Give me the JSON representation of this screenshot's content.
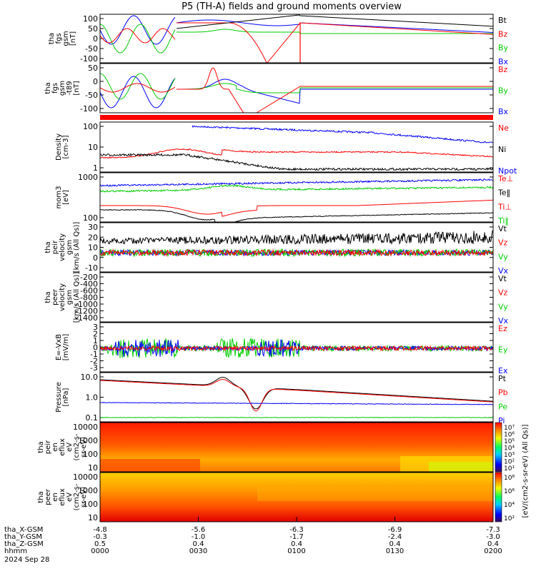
{
  "chart_data": {
    "type": "line",
    "title": "P5 (TH-A) fields and ground moments overview",
    "date_label": "2024 Sep 28",
    "x_axis": {
      "rows": [
        {
          "label": "tha_X-GSM",
          "values": [
            "-4.8",
            "-5.6",
            "-6.3",
            "-6.9",
            "-7.3"
          ]
        },
        {
          "label": "tha_Y-GSM",
          "values": [
            "-0.3",
            "-1.0",
            "-1.7",
            "-2.4",
            "-3.0"
          ]
        },
        {
          "label": "tha_Z-GSM",
          "values": [
            "0.5",
            "0.4",
            "0.4",
            "0.4",
            "0.4"
          ]
        },
        {
          "label": "hhmm",
          "values": [
            "0000",
            "0030",
            "0100",
            "0130",
            "0200"
          ]
        }
      ],
      "time_hours": [
        0,
        0.5,
        1.0,
        1.5,
        2.0
      ]
    },
    "panels": [
      {
        "id": "fgs-gsm",
        "ylabel_lines": [
          "tha",
          "fgs",
          "gsm",
          "[nT]"
        ],
        "yrange": [
          -100,
          100
        ],
        "ticks": [
          "100",
          "50",
          "0",
          "-50",
          "-100"
        ],
        "legend": [
          {
            "label": "Bt",
            "color": "#000000"
          },
          {
            "label": "Bz",
            "color": "#ff0000"
          },
          {
            "label": "By",
            "color": "#00cc00"
          },
          {
            "label": "Bx",
            "color": "#0000ff"
          }
        ]
      },
      {
        "id": "fgs-gsm-t89",
        "ylabel_lines": [
          "tha",
          "fgs",
          "gsm",
          "-t89",
          "[nT]"
        ],
        "yrange": [
          -120,
          50
        ],
        "ticks": [
          "50",
          "0",
          "-50",
          "-100"
        ],
        "legend": [
          {
            "label": "Bz",
            "color": "#ff0000"
          },
          {
            "label": "By",
            "color": "#00cc00"
          },
          {
            "label": "Bx",
            "color": "#0000ff"
          }
        ]
      },
      {
        "id": "density",
        "ylabel_lines": [
          "Density",
          "[cm-3]"
        ],
        "log": true,
        "ticks": [
          "100",
          "10",
          "1"
        ],
        "legend": [
          {
            "label": "Ne",
            "color": "#ff0000"
          },
          {
            "label": "Ni",
            "color": "#000000"
          },
          {
            "label": "Npot",
            "color": "#0000ff"
          }
        ]
      },
      {
        "id": "temperature",
        "ylabel_lines": [
          "mom3",
          "[eV]"
        ],
        "log": true,
        "ticks": [
          "1000",
          "100"
        ],
        "legend": [
          {
            "label": "Te⊥",
            "color": "#ff0000"
          },
          {
            "label": "Te‖",
            "color": "#000000"
          },
          {
            "label": "Ti⊥",
            "color": "#ff0000"
          },
          {
            "label": "Ti‖",
            "color": "#00cc00"
          }
        ]
      },
      {
        "id": "peir-velocity",
        "ylabel_lines": [
          "tha",
          "peir",
          "velocity",
          "gsm",
          "[km/s (All Qs)]"
        ],
        "yrange": [
          -20,
          30
        ],
        "ticks": [
          "30",
          "20",
          "10",
          "0",
          "-10"
        ],
        "legend": [
          {
            "label": "Vt",
            "color": "#000000"
          },
          {
            "label": "Vz",
            "color": "#ff0000"
          },
          {
            "label": "Vy",
            "color": "#00cc00"
          },
          {
            "label": "Vx",
            "color": "#0000ff"
          }
        ]
      },
      {
        "id": "peer-velocity",
        "ylabel_lines": [
          "tha",
          "peer",
          "velocity",
          "gsm",
          "[km/s (All Qs)]"
        ],
        "yrange": [
          -1400,
          0
        ],
        "ticks": [
          "-200",
          "-400",
          "-600",
          "-800",
          "-1000",
          "-1200",
          "-1400"
        ],
        "legend": [
          {
            "label": "Vt",
            "color": "#000000"
          },
          {
            "label": "Vz",
            "color": "#ff0000"
          },
          {
            "label": "Vy",
            "color": "#00cc00"
          },
          {
            "label": "Vx",
            "color": "#0000ff"
          }
        ]
      },
      {
        "id": "e-field",
        "ylabel_lines": [
          "E=-VxB",
          "[mV/m]"
        ],
        "yrange": [
          -3,
          3
        ],
        "ticks": [
          "3",
          "2",
          "1",
          "0",
          "-1",
          "-2",
          "-3"
        ],
        "legend": [
          {
            "label": "Ez",
            "color": "#ff0000"
          },
          {
            "label": "Ey",
            "color": "#00cc00"
          },
          {
            "label": "Ex",
            "color": "#0000ff"
          }
        ]
      },
      {
        "id": "pressure",
        "ylabel_lines": [
          "Pressure",
          "[nPa]"
        ],
        "log": true,
        "ticks": [
          "10.0",
          "1.0",
          "0.1"
        ],
        "legend": [
          {
            "label": "Pt",
            "color": "#000000"
          },
          {
            "label": "Pb",
            "color": "#ff0000"
          },
          {
            "label": "Pe",
            "color": "#00cc00"
          },
          {
            "label": "Pi",
            "color": "#0000ff"
          }
        ]
      },
      {
        "id": "peir-eflux",
        "ylabel_lines": [
          "tha",
          "peir",
          "en",
          "eflux",
          "eV",
          "(cm2-s-",
          "sr-eV)"
        ],
        "log": true,
        "ticks": [
          "10000",
          "1000",
          "100",
          "10"
        ],
        "colorbar": {
          "ticks": [
            "10⁷",
            "10⁶",
            "10⁵",
            "10⁴",
            "10³",
            "10²",
            "10¹"
          ],
          "label": "[eV/(cm2-s-sr-eV) (All Qs)]"
        }
      },
      {
        "id": "peer-eflux",
        "ylabel_lines": [
          "tha",
          "peer",
          "en",
          "eflux",
          "eV",
          "(cm2-s-",
          "sr-eV)"
        ],
        "log": true,
        "ticks": [
          "10000",
          "1000",
          "100",
          "10"
        ],
        "colorbar": {
          "ticks": [
            "10⁸",
            "10⁶",
            "10⁴",
            "10²"
          ],
          "label": "[eV/(cm2-s-sr-eV) (All Qs)]"
        }
      }
    ],
    "grid": false,
    "legend_position": "right of each panel"
  }
}
